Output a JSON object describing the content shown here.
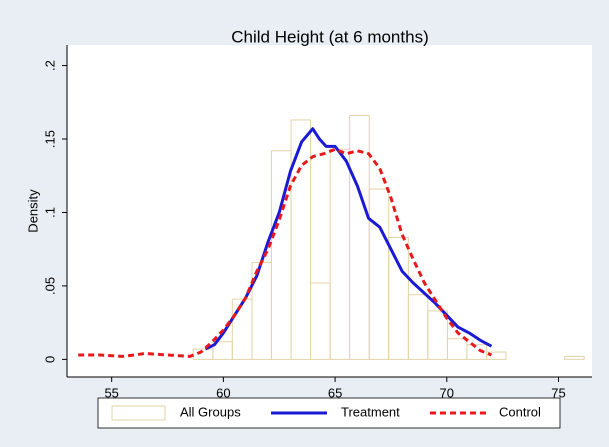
{
  "chart_data": {
    "type": "histogram",
    "title": "Child Height (at 6 months)",
    "ylabel": "Density",
    "xlim": [
      53,
      76.5
    ],
    "ylim": [
      -0.012,
      0.214
    ],
    "xticks": [
      55,
      60,
      65,
      70,
      75
    ],
    "yticks": [
      0,
      {
        "value": 0.05,
        "label": ".05"
      },
      {
        "value": 0.1,
        "label": ".1"
      },
      {
        "value": 0.15,
        "label": ".15"
      },
      {
        "value": 0.2,
        "label": ".2"
      }
    ],
    "grid": false,
    "legend": "bottom",
    "series": [
      {
        "type": "histogram",
        "name": "All Groups",
        "color": "#e3d3a8",
        "bins": [
          58.65,
          59.53,
          60.4,
          61.28,
          62.15,
          63.03,
          63.9,
          64.78,
          65.65,
          66.53,
          67.4,
          68.28,
          69.15,
          70.03,
          70.9,
          71.78,
          72.65,
          73.53,
          74.4,
          75.28,
          76.15
        ],
        "values": [
          0.007,
          0.012,
          0.041,
          0.066,
          0.142,
          0.163,
          0.052,
          0.143,
          0.166,
          0.116,
          0.083,
          0.044,
          0.033,
          0.014,
          0.01,
          0.005,
          0,
          0,
          0,
          0.002
        ]
      },
      {
        "type": "line",
        "name": "Treatment",
        "color": "#1a1ad6",
        "style": "solid",
        "x": [
          59.2,
          59.6,
          60,
          60.5,
          61,
          61.5,
          62,
          62.5,
          63,
          63.5,
          64,
          64.3,
          64.6,
          65,
          65.5,
          66,
          66.5,
          67,
          67.5,
          68,
          68.5,
          69,
          69.5,
          70,
          70.5,
          71,
          71.5,
          72
        ],
        "values": [
          0.007,
          0.01,
          0.018,
          0.03,
          0.042,
          0.057,
          0.08,
          0.1,
          0.128,
          0.148,
          0.157,
          0.15,
          0.145,
          0.145,
          0.135,
          0.118,
          0.096,
          0.09,
          0.075,
          0.06,
          0.052,
          0.045,
          0.038,
          0.03,
          0.022,
          0.018,
          0.013,
          0.009
        ]
      },
      {
        "type": "line",
        "name": "Control",
        "color": "#e8191c",
        "style": "dashed",
        "x": [
          53.5,
          54.5,
          55.5,
          56.5,
          57.5,
          58.5,
          59,
          59.5,
          60,
          60.5,
          61,
          61.5,
          62,
          62.5,
          63,
          63.5,
          64,
          64.5,
          65,
          65.5,
          66,
          66.5,
          67,
          67.5,
          68,
          68.5,
          69,
          69.5,
          70,
          70.5,
          71,
          71.5,
          72
        ],
        "values": [
          0.003,
          0.003,
          0.002,
          0.004,
          0.003,
          0.002,
          0.005,
          0.012,
          0.02,
          0.03,
          0.042,
          0.06,
          0.075,
          0.095,
          0.118,
          0.132,
          0.138,
          0.14,
          0.143,
          0.14,
          0.142,
          0.14,
          0.13,
          0.11,
          0.085,
          0.068,
          0.052,
          0.04,
          0.028,
          0.018,
          0.012,
          0.006,
          0.003
        ]
      }
    ]
  }
}
